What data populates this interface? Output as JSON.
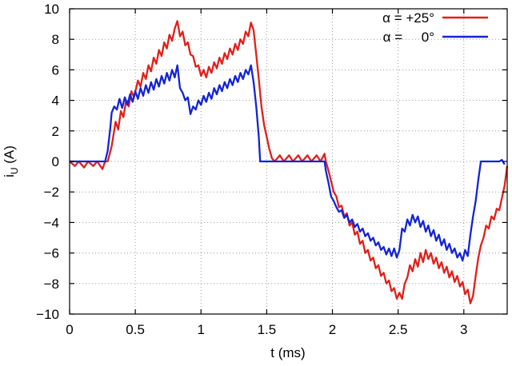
{
  "chart_data": {
    "type": "line",
    "title": "",
    "xlabel": "t (ms)",
    "ylabel_main": "i",
    "ylabel_sub": "U",
    "ylabel_suffix": " (A)",
    "xlim": [
      0,
      3.33
    ],
    "ylim": [
      -10,
      10
    ],
    "xticks": [
      0,
      0.5,
      1,
      1.5,
      2,
      2.5,
      3
    ],
    "xtick_labels": [
      "0",
      "0.5",
      "1",
      "1.5",
      "2",
      "2.5",
      "3"
    ],
    "yticks": [
      -10,
      -8,
      -6,
      -4,
      -2,
      0,
      2,
      4,
      6,
      8,
      10
    ],
    "ytick_labels": [
      "−10",
      "−8",
      "−6",
      "−4",
      "−2",
      "0",
      "2",
      "4",
      "6",
      "8",
      "10"
    ],
    "grid": true,
    "legend_position": "top-right",
    "series": [
      {
        "name": "α = +25°",
        "color": "#e0201a",
        "points": [
          [
            0,
            0
          ],
          [
            0.04,
            -0.3
          ],
          [
            0.07,
            0
          ],
          [
            0.11,
            -0.4
          ],
          [
            0.14,
            0
          ],
          [
            0.18,
            -0.3
          ],
          [
            0.21,
            0
          ],
          [
            0.25,
            -0.5
          ],
          [
            0.27,
            0
          ],
          [
            0.29,
            0
          ],
          [
            0.32,
            1.0
          ],
          [
            0.35,
            2.6
          ],
          [
            0.37,
            2.1
          ],
          [
            0.39,
            3.3
          ],
          [
            0.41,
            2.9
          ],
          [
            0.43,
            4.0
          ],
          [
            0.45,
            3.6
          ],
          [
            0.47,
            4.6
          ],
          [
            0.49,
            4.2
          ],
          [
            0.52,
            5.3
          ],
          [
            0.54,
            4.9
          ],
          [
            0.56,
            5.8
          ],
          [
            0.58,
            5.4
          ],
          [
            0.6,
            6.3
          ],
          [
            0.62,
            5.9
          ],
          [
            0.64,
            6.8
          ],
          [
            0.66,
            6.4
          ],
          [
            0.68,
            7.3
          ],
          [
            0.7,
            6.9
          ],
          [
            0.72,
            7.8
          ],
          [
            0.74,
            7.4
          ],
          [
            0.76,
            8.3
          ],
          [
            0.78,
            7.9
          ],
          [
            0.8,
            8.7
          ],
          [
            0.82,
            9.2
          ],
          [
            0.84,
            8.2
          ],
          [
            0.86,
            8.5
          ],
          [
            0.88,
            7.6
          ],
          [
            0.9,
            7.8
          ],
          [
            0.92,
            7.0
          ],
          [
            0.94,
            6.9
          ],
          [
            0.96,
            6.2
          ],
          [
            0.98,
            6.3
          ],
          [
            1.0,
            5.6
          ],
          [
            1.02,
            6.0
          ],
          [
            1.04,
            5.5
          ],
          [
            1.06,
            6.2
          ],
          [
            1.08,
            5.8
          ],
          [
            1.1,
            6.5
          ],
          [
            1.12,
            6.1
          ],
          [
            1.14,
            6.8
          ],
          [
            1.16,
            6.4
          ],
          [
            1.18,
            7.1
          ],
          [
            1.2,
            6.7
          ],
          [
            1.22,
            7.4
          ],
          [
            1.24,
            7.0
          ],
          [
            1.26,
            7.7
          ],
          [
            1.28,
            7.3
          ],
          [
            1.3,
            8.0
          ],
          [
            1.32,
            7.7
          ],
          [
            1.34,
            8.5
          ],
          [
            1.36,
            8.2
          ],
          [
            1.38,
            9.1
          ],
          [
            1.4,
            8.6
          ],
          [
            1.42,
            7.0
          ],
          [
            1.44,
            5.4
          ],
          [
            1.46,
            3.6
          ],
          [
            1.48,
            2.4
          ],
          [
            1.5,
            1.6
          ],
          [
            1.52,
            0.8
          ],
          [
            1.54,
            0.2
          ],
          [
            1.56,
            0
          ],
          [
            1.6,
            0.4
          ],
          [
            1.63,
            0
          ],
          [
            1.67,
            0.4
          ],
          [
            1.7,
            0
          ],
          [
            1.74,
            0.4
          ],
          [
            1.77,
            0
          ],
          [
            1.81,
            0.4
          ],
          [
            1.84,
            0
          ],
          [
            1.88,
            0.4
          ],
          [
            1.91,
            0
          ],
          [
            1.94,
            0.5
          ],
          [
            1.95,
            0
          ],
          [
            1.97,
            -0.6
          ],
          [
            1.99,
            -1.3
          ],
          [
            2.01,
            -2.0
          ],
          [
            2.03,
            -2.3
          ],
          [
            2.05,
            -3.0
          ],
          [
            2.07,
            -2.9
          ],
          [
            2.09,
            -3.6
          ],
          [
            2.11,
            -3.4
          ],
          [
            2.13,
            -4.2
          ],
          [
            2.15,
            -4.0
          ],
          [
            2.17,
            -4.8
          ],
          [
            2.19,
            -4.6
          ],
          [
            2.21,
            -5.4
          ],
          [
            2.23,
            -5.2
          ],
          [
            2.25,
            -6.0
          ],
          [
            2.27,
            -5.8
          ],
          [
            2.29,
            -6.5
          ],
          [
            2.31,
            -6.3
          ],
          [
            2.33,
            -7.0
          ],
          [
            2.35,
            -6.8
          ],
          [
            2.37,
            -7.5
          ],
          [
            2.39,
            -7.3
          ],
          [
            2.41,
            -8.0
          ],
          [
            2.43,
            -7.8
          ],
          [
            2.45,
            -8.5
          ],
          [
            2.47,
            -8.3
          ],
          [
            2.49,
            -9.0
          ],
          [
            2.51,
            -8.6
          ],
          [
            2.53,
            -9.0
          ],
          [
            2.55,
            -8.0
          ],
          [
            2.57,
            -7.6
          ],
          [
            2.59,
            -6.8
          ],
          [
            2.61,
            -7.2
          ],
          [
            2.63,
            -6.4
          ],
          [
            2.65,
            -6.9
          ],
          [
            2.67,
            -6.0
          ],
          [
            2.69,
            -6.6
          ],
          [
            2.71,
            -5.8
          ],
          [
            2.73,
            -6.4
          ],
          [
            2.75,
            -6.0
          ],
          [
            2.77,
            -6.7
          ],
          [
            2.79,
            -6.3
          ],
          [
            2.81,
            -7.0
          ],
          [
            2.83,
            -6.6
          ],
          [
            2.85,
            -7.3
          ],
          [
            2.87,
            -6.9
          ],
          [
            2.89,
            -7.6
          ],
          [
            2.91,
            -7.2
          ],
          [
            2.93,
            -7.9
          ],
          [
            2.95,
            -7.5
          ],
          [
            2.97,
            -8.2
          ],
          [
            2.99,
            -7.9
          ],
          [
            3.01,
            -8.7
          ],
          [
            3.03,
            -8.4
          ],
          [
            3.05,
            -9.3
          ],
          [
            3.07,
            -8.8
          ],
          [
            3.09,
            -7.5
          ],
          [
            3.11,
            -6.3
          ],
          [
            3.13,
            -5.5
          ],
          [
            3.15,
            -5.0
          ],
          [
            3.17,
            -4.2
          ],
          [
            3.19,
            -4.4
          ],
          [
            3.21,
            -3.6
          ],
          [
            3.23,
            -3.8
          ],
          [
            3.25,
            -3.1
          ],
          [
            3.27,
            -3.2
          ],
          [
            3.29,
            -2.4
          ],
          [
            3.31,
            -1.6
          ],
          [
            3.33,
            -0.3
          ]
        ]
      },
      {
        "name": "α =     0°",
        "color": "#1423d6",
        "points": [
          [
            0,
            0
          ],
          [
            0.25,
            0
          ],
          [
            0.27,
            0
          ],
          [
            0.29,
            0.7
          ],
          [
            0.31,
            2.2
          ],
          [
            0.32,
            3.2
          ],
          [
            0.34,
            3.6
          ],
          [
            0.36,
            3.4
          ],
          [
            0.38,
            4.1
          ],
          [
            0.4,
            3.5
          ],
          [
            0.42,
            4.2
          ],
          [
            0.44,
            3.7
          ],
          [
            0.46,
            4.4
          ],
          [
            0.48,
            3.9
          ],
          [
            0.5,
            4.6
          ],
          [
            0.52,
            4.1
          ],
          [
            0.54,
            4.8
          ],
          [
            0.56,
            4.3
          ],
          [
            0.58,
            5.0
          ],
          [
            0.6,
            4.5
          ],
          [
            0.62,
            5.2
          ],
          [
            0.64,
            4.7
          ],
          [
            0.66,
            5.4
          ],
          [
            0.68,
            4.9
          ],
          [
            0.7,
            5.6
          ],
          [
            0.72,
            5.1
          ],
          [
            0.74,
            5.8
          ],
          [
            0.76,
            5.3
          ],
          [
            0.78,
            6.0
          ],
          [
            0.8,
            5.5
          ],
          [
            0.82,
            6.3
          ],
          [
            0.84,
            4.8
          ],
          [
            0.86,
            4.5
          ],
          [
            0.88,
            4.0
          ],
          [
            0.9,
            4.2
          ],
          [
            0.92,
            3.1
          ],
          [
            0.94,
            3.6
          ],
          [
            0.96,
            3.4
          ],
          [
            0.98,
            4.0
          ],
          [
            1.0,
            3.7
          ],
          [
            1.02,
            4.3
          ],
          [
            1.04,
            3.9
          ],
          [
            1.06,
            4.5
          ],
          [
            1.08,
            4.1
          ],
          [
            1.1,
            4.8
          ],
          [
            1.12,
            4.4
          ],
          [
            1.14,
            5.0
          ],
          [
            1.16,
            4.6
          ],
          [
            1.18,
            5.2
          ],
          [
            1.2,
            4.8
          ],
          [
            1.22,
            5.4
          ],
          [
            1.24,
            5.0
          ],
          [
            1.26,
            5.6
          ],
          [
            1.28,
            5.2
          ],
          [
            1.3,
            5.8
          ],
          [
            1.32,
            5.4
          ],
          [
            1.34,
            6.0
          ],
          [
            1.36,
            5.7
          ],
          [
            1.38,
            6.3
          ],
          [
            1.4,
            5.2
          ],
          [
            1.42,
            3.6
          ],
          [
            1.44,
            1.6
          ],
          [
            1.45,
            0
          ],
          [
            1.5,
            0
          ],
          [
            1.9,
            0
          ],
          [
            1.94,
            0
          ],
          [
            1.95,
            -0.6
          ],
          [
            1.97,
            -1.4
          ],
          [
            1.99,
            -2.3
          ],
          [
            2.01,
            -2.6
          ],
          [
            2.03,
            -3.0
          ],
          [
            2.05,
            -3.3
          ],
          [
            2.07,
            -3.2
          ],
          [
            2.09,
            -3.7
          ],
          [
            2.11,
            -3.5
          ],
          [
            2.13,
            -4.0
          ],
          [
            2.15,
            -3.8
          ],
          [
            2.17,
            -4.3
          ],
          [
            2.19,
            -4.1
          ],
          [
            2.21,
            -4.6
          ],
          [
            2.23,
            -4.4
          ],
          [
            2.25,
            -4.9
          ],
          [
            2.27,
            -4.7
          ],
          [
            2.29,
            -5.2
          ],
          [
            2.31,
            -5.0
          ],
          [
            2.33,
            -5.5
          ],
          [
            2.35,
            -5.3
          ],
          [
            2.37,
            -5.8
          ],
          [
            2.39,
            -5.6
          ],
          [
            2.41,
            -6.1
          ],
          [
            2.43,
            -5.7
          ],
          [
            2.45,
            -6.2
          ],
          [
            2.47,
            -5.7
          ],
          [
            2.49,
            -6.3
          ],
          [
            2.51,
            -5.8
          ],
          [
            2.53,
            -4.4
          ],
          [
            2.55,
            -4.6
          ],
          [
            2.57,
            -3.8
          ],
          [
            2.59,
            -4.2
          ],
          [
            2.61,
            -3.5
          ],
          [
            2.63,
            -4.0
          ],
          [
            2.65,
            -3.6
          ],
          [
            2.67,
            -4.3
          ],
          [
            2.69,
            -3.9
          ],
          [
            2.71,
            -4.6
          ],
          [
            2.73,
            -4.2
          ],
          [
            2.75,
            -4.9
          ],
          [
            2.77,
            -4.5
          ],
          [
            2.79,
            -5.2
          ],
          [
            2.81,
            -4.8
          ],
          [
            2.83,
            -5.5
          ],
          [
            2.85,
            -5.1
          ],
          [
            2.87,
            -5.8
          ],
          [
            2.89,
            -5.4
          ],
          [
            2.91,
            -6.0
          ],
          [
            2.93,
            -5.7
          ],
          [
            2.95,
            -6.3
          ],
          [
            2.97,
            -6.0
          ],
          [
            2.99,
            -6.5
          ],
          [
            3.01,
            -5.8
          ],
          [
            3.03,
            -6.2
          ],
          [
            3.05,
            -4.8
          ],
          [
            3.07,
            -3.6
          ],
          [
            3.09,
            -2.6
          ],
          [
            3.11,
            -1.2
          ],
          [
            3.13,
            0
          ],
          [
            3.2,
            0
          ],
          [
            3.27,
            0
          ],
          [
            3.29,
            0.1
          ],
          [
            3.31,
            -0.2
          ]
        ]
      }
    ]
  }
}
